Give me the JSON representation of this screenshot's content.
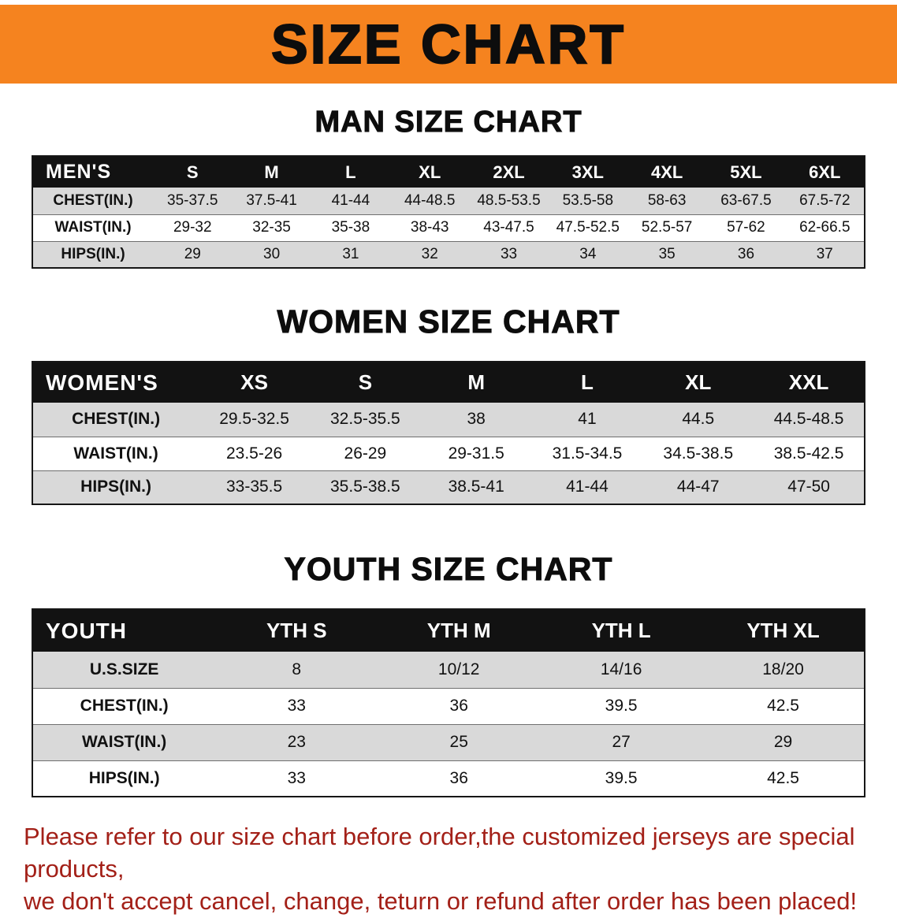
{
  "banner": {
    "title": "SIZE CHART"
  },
  "colors": {
    "banner_orange": "#F5831F",
    "notice_red": "#A32018",
    "header_black": "#121212",
    "row_gray": "#d9d9d9"
  },
  "sections": [
    {
      "id": "men",
      "heading": "MAN SIZE CHART",
      "header": [
        "MEN'S",
        "S",
        "M",
        "L",
        "XL",
        "2XL",
        "3XL",
        "4XL",
        "5XL",
        "6XL"
      ],
      "rows": [
        {
          "label": "CHEST(IN.)",
          "values": [
            "35-37.5",
            "37.5-41",
            "41-44",
            "44-48.5",
            "48.5-53.5",
            "53.5-58",
            "58-63",
            "63-67.5",
            "67.5-72"
          ]
        },
        {
          "label": "WAIST(IN.)",
          "values": [
            "29-32",
            "32-35",
            "35-38",
            "38-43",
            "43-47.5",
            "47.5-52.5",
            "52.5-57",
            "57-62",
            "62-66.5"
          ]
        },
        {
          "label": "HIPS(IN.)",
          "values": [
            "29",
            "30",
            "31",
            "32",
            "33",
            "34",
            "35",
            "36",
            "37"
          ]
        }
      ]
    },
    {
      "id": "women",
      "heading": "WOMEN SIZE CHART",
      "header": [
        "WOMEN'S",
        "XS",
        "S",
        "M",
        "L",
        "XL",
        "XXL"
      ],
      "rows": [
        {
          "label": "CHEST(IN.)",
          "values": [
            "29.5-32.5",
            "32.5-35.5",
            "38",
            "41",
            "44.5",
            "44.5-48.5"
          ]
        },
        {
          "label": "WAIST(IN.)",
          "values": [
            "23.5-26",
            "26-29",
            "29-31.5",
            "31.5-34.5",
            "34.5-38.5",
            "38.5-42.5"
          ]
        },
        {
          "label": "HIPS(IN.)",
          "values": [
            "33-35.5",
            "35.5-38.5",
            "38.5-41",
            "41-44",
            "44-47",
            "47-50"
          ]
        }
      ]
    },
    {
      "id": "youth",
      "heading": "YOUTH SIZE CHART",
      "header": [
        "YOUTH",
        "YTH S",
        "YTH M",
        "YTH L",
        "YTH XL"
      ],
      "rows": [
        {
          "label": "U.S.SIZE",
          "values": [
            "8",
            "10/12",
            "14/16",
            "18/20"
          ]
        },
        {
          "label": "CHEST(IN.)",
          "values": [
            "33",
            "36",
            "39.5",
            "42.5"
          ]
        },
        {
          "label": "WAIST(IN.)",
          "values": [
            "23",
            "25",
            "27",
            "29"
          ]
        },
        {
          "label": "HIPS(IN.)",
          "values": [
            "33",
            "36",
            "39.5",
            "42.5"
          ]
        }
      ]
    }
  ],
  "footer": {
    "line1": "Please refer to our size chart before order,the customized jerseys are special products,",
    "line2": "we don't accept cancel, change, teturn or refund after order has been placed!"
  }
}
